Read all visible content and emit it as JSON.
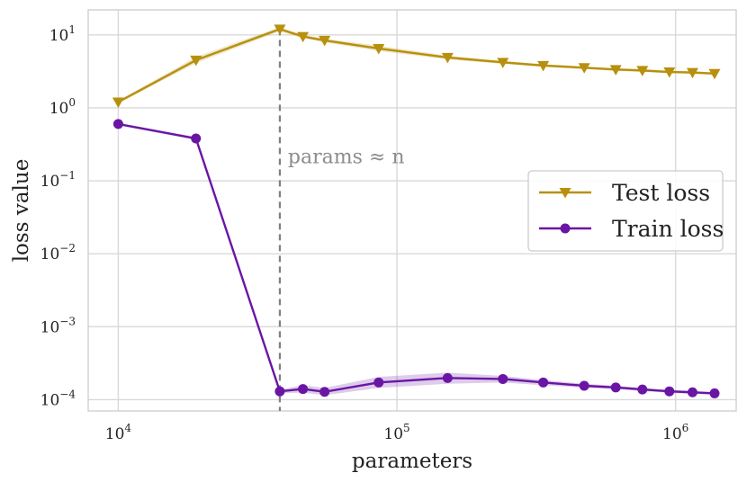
{
  "chart_data": {
    "type": "line",
    "title": "",
    "xlabel": "parameters",
    "ylabel": "loss value",
    "x_scale": "log",
    "y_scale": "log",
    "xlim": [
      7800,
      1650000
    ],
    "ylim": [
      7e-05,
      22
    ],
    "grid": true,
    "legend_position": "center-right",
    "x_ticks": [
      {
        "value": 10000,
        "base": "10",
        "exp": "4"
      },
      {
        "value": 100000,
        "base": "10",
        "exp": "5"
      },
      {
        "value": 1000000,
        "base": "10",
        "exp": "6"
      }
    ],
    "y_ticks": [
      {
        "value": 10,
        "base": "10",
        "exp": "1"
      },
      {
        "value": 1,
        "base": "10",
        "exp": "0"
      },
      {
        "value": 0.1,
        "base": "10",
        "exp": "−1"
      },
      {
        "value": 0.01,
        "base": "10",
        "exp": "−2"
      },
      {
        "value": 0.001,
        "base": "10",
        "exp": "−3"
      },
      {
        "value": 0.0001,
        "base": "10",
        "exp": "−4"
      }
    ],
    "annotation": {
      "text": "params ≈ n",
      "x": 38000
    },
    "series": [
      {
        "name": "Test loss",
        "color": "#b8900e",
        "marker": "triangle-down",
        "x": [
          10000,
          19000,
          38000,
          46000,
          55000,
          86000,
          152000,
          240000,
          335000,
          470000,
          610000,
          760000,
          950000,
          1150000,
          1380000
        ],
        "y": [
          1.2,
          4.5,
          12,
          9.5,
          8.4,
          6.5,
          4.9,
          4.2,
          3.8,
          3.55,
          3.35,
          3.25,
          3.1,
          3.05,
          2.95
        ],
        "band_lo": [
          1.15,
          4.1,
          11.2,
          9.0,
          7.9,
          6.0,
          4.6,
          4.0,
          3.65,
          3.4,
          3.2,
          3.12,
          2.98,
          2.93,
          2.85
        ],
        "band_hi": [
          1.25,
          5.0,
          12.8,
          10.0,
          8.9,
          7.1,
          5.2,
          4.4,
          3.95,
          3.7,
          3.5,
          3.38,
          3.22,
          3.17,
          3.05
        ]
      },
      {
        "name": "Train loss",
        "color": "#6a16a4",
        "marker": "circle",
        "x": [
          10000,
          19000,
          38000,
          46000,
          55000,
          86000,
          152000,
          240000,
          335000,
          470000,
          610000,
          760000,
          950000,
          1150000,
          1380000
        ],
        "y": [
          0.6,
          0.38,
          0.00013,
          0.00014,
          0.000128,
          0.000172,
          0.000198,
          0.000192,
          0.000172,
          0.000155,
          0.000147,
          0.000138,
          0.00013,
          0.000126,
          0.000122
        ],
        "band_lo": [
          0.58,
          0.36,
          0.000123,
          0.000125,
          0.000115,
          0.000145,
          0.000165,
          0.000172,
          0.000158,
          0.000146,
          0.000139,
          0.000131,
          0.000124,
          0.00012,
          0.000117
        ],
        "band_hi": [
          0.62,
          0.4,
          0.000137,
          0.000158,
          0.000145,
          0.000205,
          0.000235,
          0.000212,
          0.000186,
          0.000165,
          0.000155,
          0.000145,
          0.000136,
          0.000132,
          0.000127
        ]
      }
    ]
  }
}
